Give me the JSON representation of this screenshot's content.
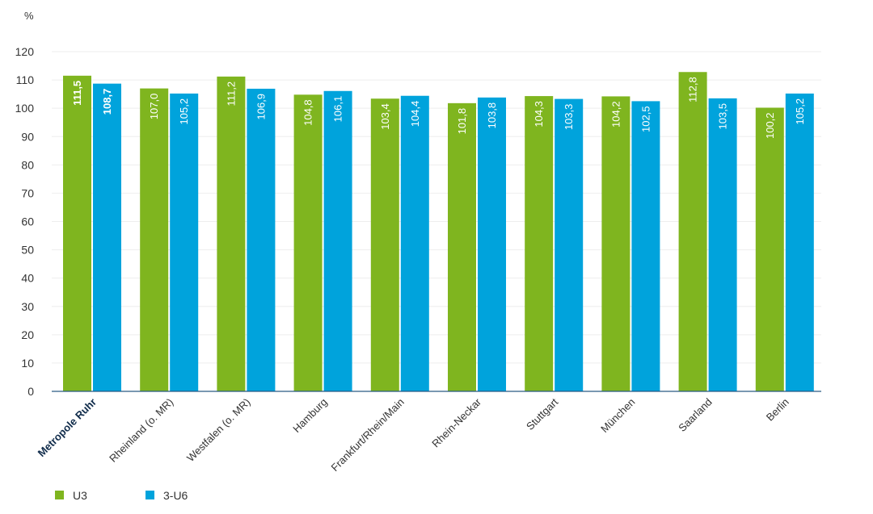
{
  "chart_data": {
    "type": "bar",
    "unit": "%",
    "categories": [
      "Metropole Ruhr",
      "Rheinland (o. MR)",
      "Westfalen (o. MR)",
      "Hamburg",
      "Frankfurt/Rhein/Main",
      "Rhein-Neckar",
      "Stuttgart",
      "München",
      "Saarland",
      "Berlin"
    ],
    "highlight_category": "Metropole Ruhr",
    "series": [
      {
        "name": "U3",
        "color": "#7fb51f",
        "values": [
          111.5,
          107.0,
          111.2,
          104.8,
          103.4,
          101.8,
          104.3,
          104.2,
          112.8,
          100.2
        ],
        "labels": [
          "111,5",
          "107,0",
          "111,2",
          "104,8",
          "103,4",
          "101,8",
          "104,3",
          "104,2",
          "112,8",
          "100,2"
        ]
      },
      {
        "name": "3-U6",
        "color": "#00a3dc",
        "values": [
          108.7,
          105.2,
          106.9,
          106.1,
          104.4,
          103.8,
          103.3,
          102.5,
          103.5,
          105.2
        ],
        "labels": [
          "108,7",
          "105,2",
          "106,9",
          "106,1",
          "104,4",
          "103,8",
          "103,3",
          "102,5",
          "103,5",
          "105,2"
        ]
      }
    ],
    "ylim": [
      0,
      120
    ],
    "yticks": [
      "0",
      "10",
      "20",
      "30",
      "40",
      "50",
      "60",
      "70",
      "80",
      "90",
      "100",
      "110",
      "120"
    ],
    "grid": true,
    "legend_position": "bottom-left"
  }
}
